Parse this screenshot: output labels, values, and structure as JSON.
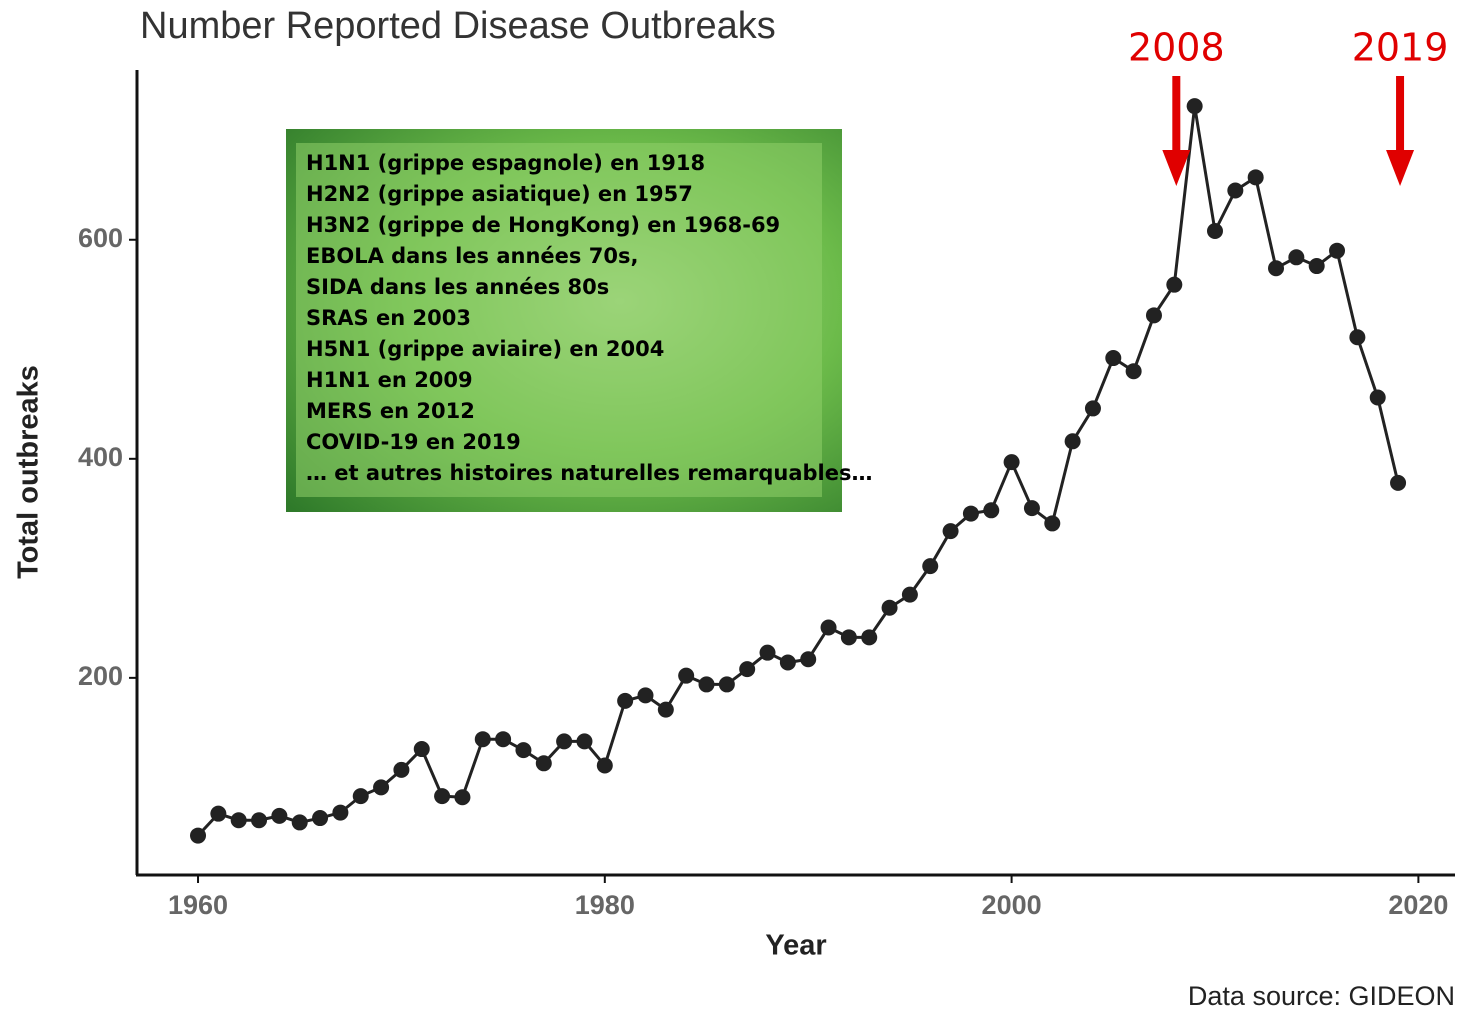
{
  "chart_data": {
    "type": "line",
    "title": "Number Reported Disease Outbreaks",
    "x_label": "Year",
    "y_label": "Total outbreaks",
    "source": "Data source: GIDEON",
    "x": [
      1960,
      1961,
      1962,
      1963,
      1964,
      1965,
      1966,
      1967,
      1968,
      1969,
      1970,
      1971,
      1972,
      1973,
      1974,
      1975,
      1976,
      1977,
      1978,
      1979,
      1980,
      1981,
      1982,
      1983,
      1984,
      1985,
      1986,
      1987,
      1988,
      1989,
      1990,
      1991,
      1992,
      1993,
      1994,
      1995,
      1996,
      1997,
      1998,
      1999,
      2000,
      2001,
      2002,
      2003,
      2004,
      2005,
      2006,
      2007,
      2008,
      2009,
      2010,
      2011,
      2012,
      2013,
      2014,
      2015,
      2016,
      2017,
      2018,
      2019
    ],
    "values": [
      56,
      76,
      70,
      70,
      74,
      68,
      72,
      77,
      92,
      100,
      116,
      135,
      92,
      91,
      144,
      144,
      134,
      122,
      142,
      142,
      120,
      179,
      184,
      171,
      202,
      194,
      194,
      208,
      223,
      214,
      217,
      246,
      237,
      237,
      264,
      276,
      302,
      334,
      350,
      353,
      397,
      355,
      341,
      416,
      446,
      492,
      480,
      531,
      559,
      722,
      608,
      645,
      657,
      574,
      584,
      576,
      590,
      511,
      456,
      378
    ],
    "color": "#222222",
    "xlim": [
      1957,
      2021.8
    ],
    "ylim": [
      20,
      755
    ],
    "xticks": [
      1960,
      1980,
      2000,
      2020
    ],
    "yticks": [
      200,
      400,
      600
    ],
    "grid": false,
    "annotations": [
      {
        "text": "2008",
        "x": 2008
      },
      {
        "text": "2019",
        "x": 2019
      }
    ],
    "note_lines": [
      "H1N1 (grippe espagnole) en 1918",
      "H2N2 (grippe asiatique) en 1957",
      "H3N2 (grippe de HongKong) en 1968-69",
      "EBOLA dans les années 70s,",
      "SIDA dans les années 80s",
      "SRAS en 2003",
      "H5N1 (grippe aviaire) en 2004",
      "H1N1 en 2009",
      "MERS en 2012",
      "COVID-19 en 2019",
      "… et autres histoires naturelles remarquables…"
    ]
  }
}
